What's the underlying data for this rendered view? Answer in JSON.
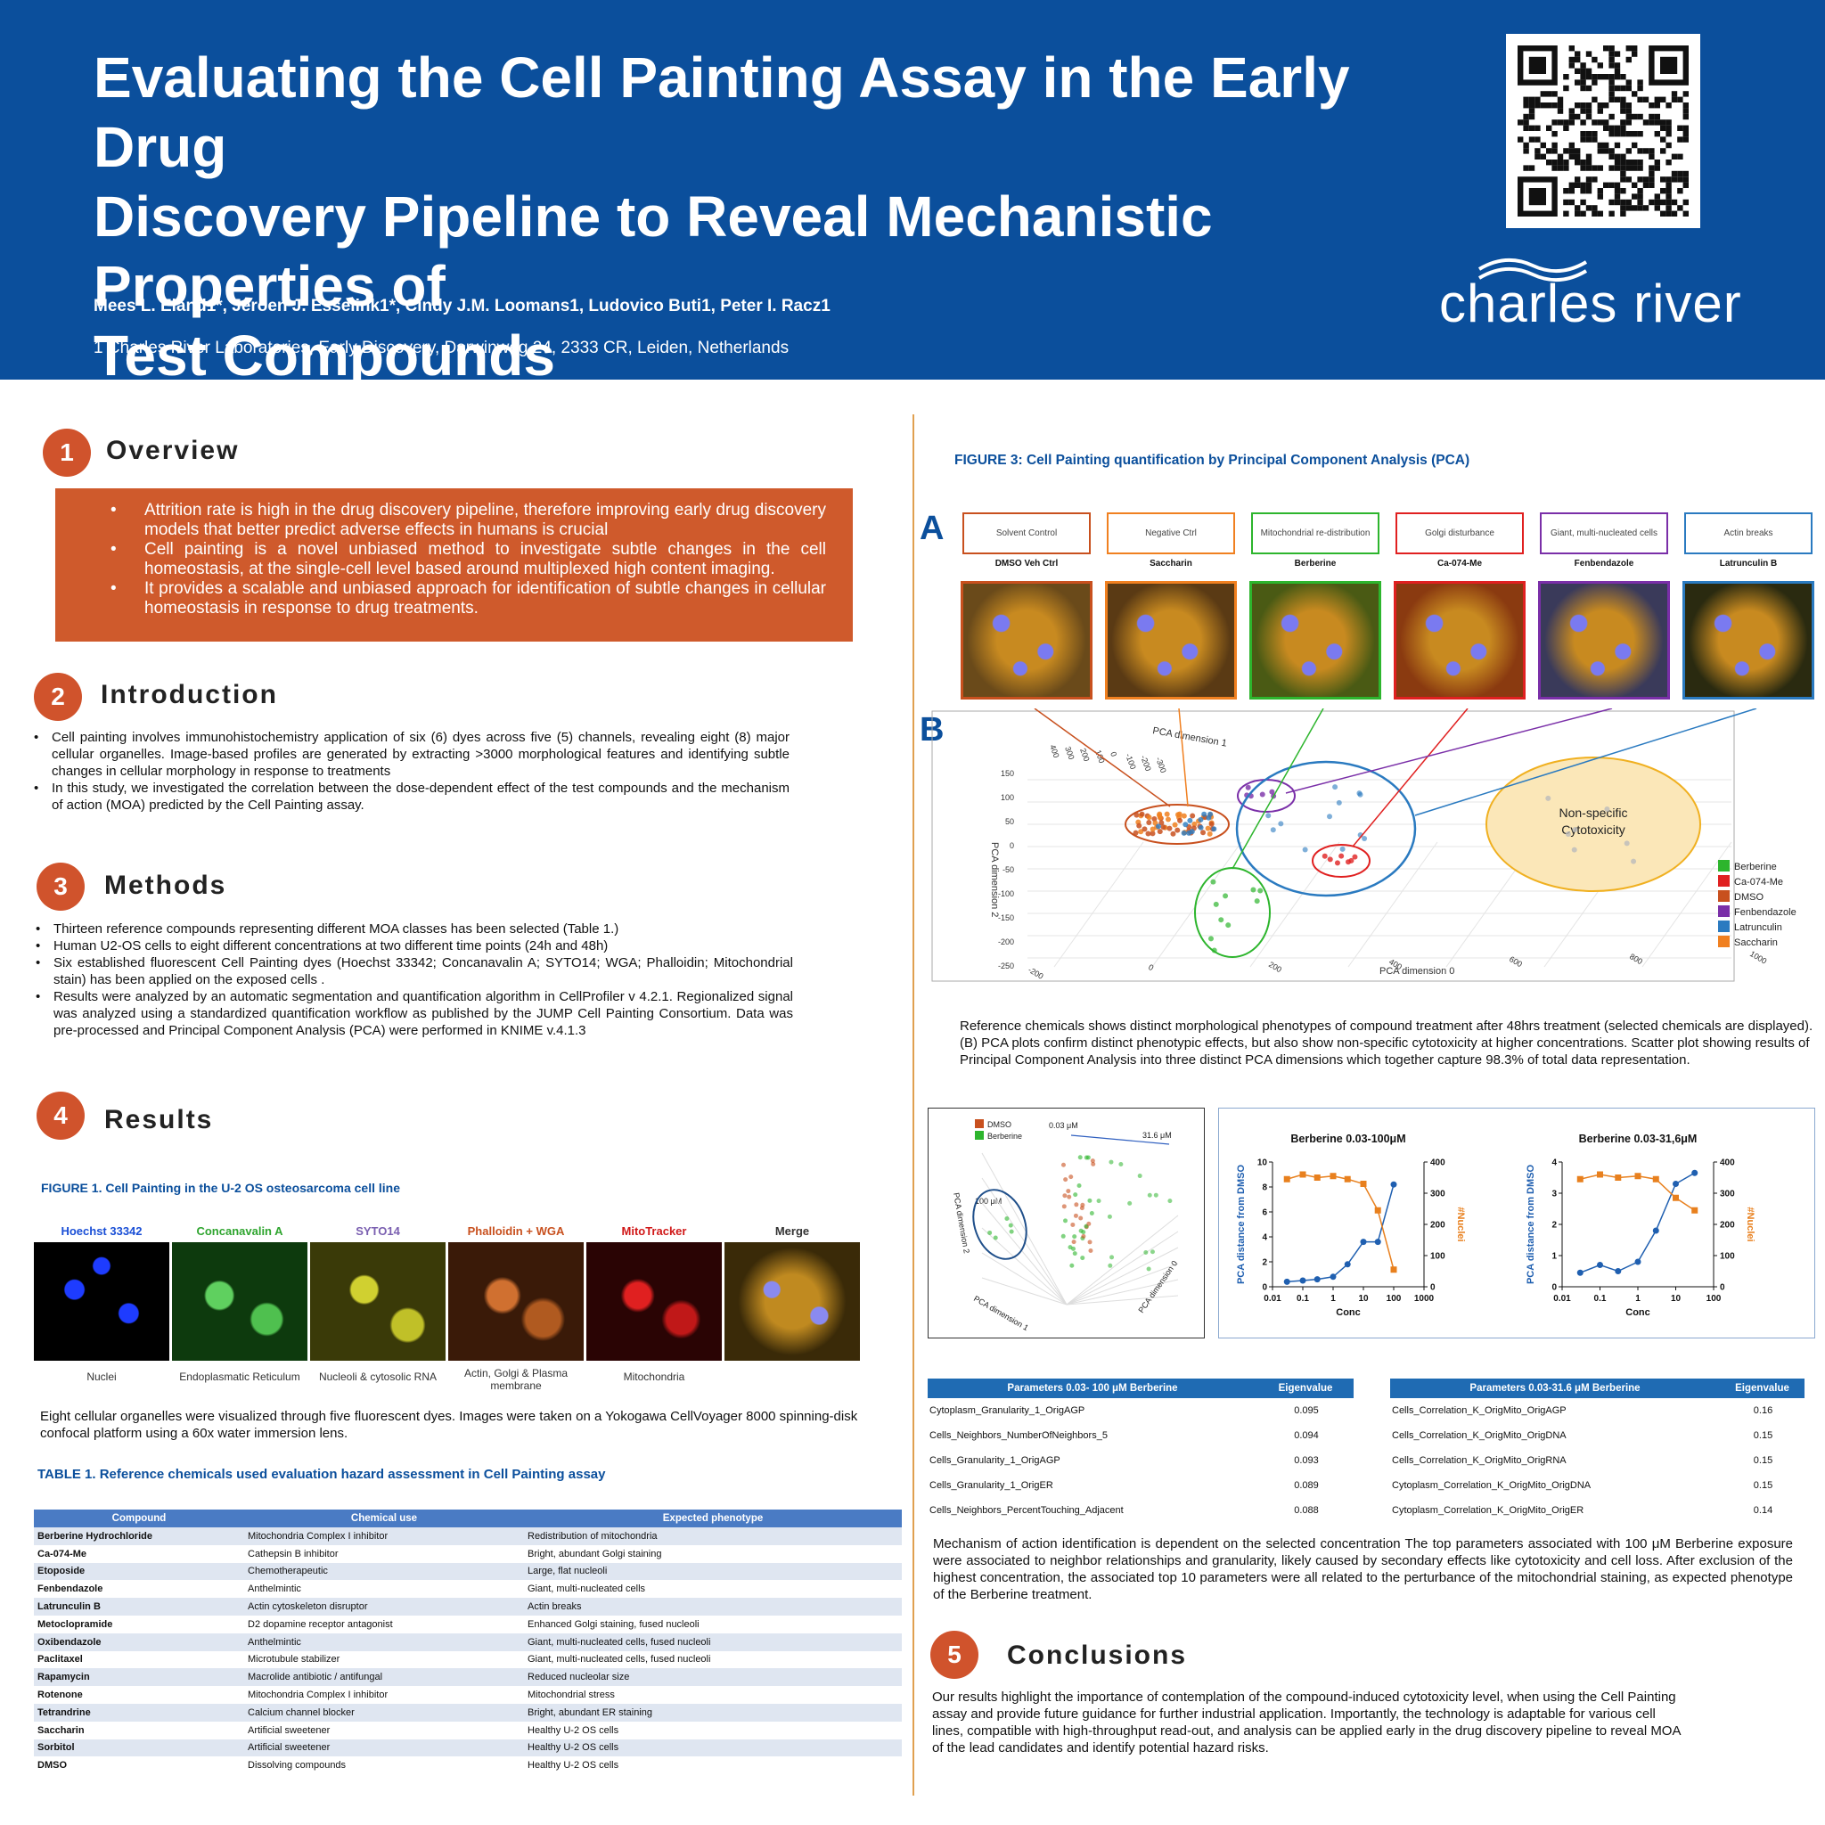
{
  "header": {
    "title_lines": [
      "Evaluating the Cell Painting Assay in the Early Drug",
      "Discovery Pipeline to Reveal Mechanistic Properties of",
      "Test Compounds"
    ],
    "authors": "Mees L. Eland1*, Jeroen J. Esselink1*, Cindy J.M. Loomans1, Ludovico Buti1, Peter I. Racz1",
    "affiliation": "1 Charles River Laboratories, Early Discovery, Darwinweg 24, 2333 CR, Leiden, Netherlands",
    "logo_text": "charles river",
    "brand_color": "#0b4f9c",
    "accent_color": "#d0532c"
  },
  "sections": {
    "overview": {
      "num": "1",
      "title": "Overview",
      "bullets": [
        "Attrition rate is high in the drug discovery pipeline, therefore improving early drug discovery models that better predict adverse effects in humans is crucial",
        "Cell painting is a novel unbiased method to investigate subtle changes in the cell homeostasis, at the single-cell level based around multiplexed high content imaging.",
        "It provides a scalable and unbiased approach for identification of subtle changes in cellular homeostasis in response to drug treatments."
      ]
    },
    "introduction": {
      "num": "2",
      "title": "Introduction",
      "bullets": [
        "Cell painting involves immunohistochemistry application of six (6) dyes across five (5) channels, revealing eight (8) major cellular organelles. Image-based profiles are generated by extracting >3000 morphological features and identifying subtle changes in cellular morphology in response to treatments",
        "In this study, we investigated the correlation between the dose-dependent effect of the test compounds and the mechanism of action (MOA) predicted by the Cell Painting assay."
      ]
    },
    "methods": {
      "num": "3",
      "title": "Methods",
      "bullets": [
        "Thirteen reference compounds representing different MOA classes has been selected (Table 1.)",
        "Human U2-OS cells to eight different concentrations at two different time points (24h and 48h)",
        "Six established fluorescent Cell Painting dyes (Hoechst 33342; Concanavalin A; SYTO14; WGA; Phalloidin; Mitochondrial stain) has been applied on the exposed cells .",
        "Results were analyzed by an automatic segmentation and quantification algorithm in CellProfiler v 4.2.1. Regionalized signal was analyzed using a standardized quantification workflow as published by the JUMP Cell Painting Consortium. Data was pre-processed and Principal Component Analysis (PCA) were performed in KNIME v.4.1.3"
      ]
    },
    "results": {
      "num": "4",
      "title": "Results"
    },
    "conclusions": {
      "num": "5",
      "title": "Conclusions",
      "text": "Our results highlight the importance of contemplation of the compound-induced cytotoxicity level, when using the Cell Painting assay and provide future guidance for further industrial application.  Importantly, the technology is adaptable for various cell lines, compatible with high-throughput read-out, and analysis can be applied early in the drug discovery pipeline to reveal MOA of the lead candidates and identify potential hazard risks."
    }
  },
  "figure1": {
    "title": "FIGURE 1. Cell Painting in the U-2 OS osteosarcoma cell line",
    "channels": [
      {
        "label": "Hoechst 33342",
        "caption": "Nuclei",
        "color": "#1a4fd6"
      },
      {
        "label": "Concanavalin A",
        "caption": "Endoplasmatic Reticulum",
        "color": "#2fa52f"
      },
      {
        "label": "SYTO14",
        "caption": "Nucleoli & cytosolic RNA",
        "color": "#7a5fb0"
      },
      {
        "label": "Phalloidin + WGA",
        "caption": "Actin, Golgi & Plasma membrane",
        "color": "#c8501e"
      },
      {
        "label": "MitoTracker",
        "caption": "Mitochondria",
        "color": "#d01818"
      },
      {
        "label": "Merge",
        "caption": "",
        "color": "#333333"
      }
    ],
    "text": "Eight cellular organelles were visualized through five fluorescent dyes. Images were taken on a Yokogawa CellVoyager 8000 spinning-disk confocal platform using a 60x water immersion lens."
  },
  "table1": {
    "title": "TABLE  1. Reference chemicals used evaluation hazard assessment in Cell Painting assay",
    "headers": [
      "Compound",
      "Chemical use",
      "Expected phenotype"
    ],
    "rows": [
      [
        "Berberine Hydrochloride",
        "Mitochondria Complex I inhibitor",
        "Redistribution of mitochondria"
      ],
      [
        "Ca-074-Me",
        "Cathepsin B inhibitor",
        "Bright, abundant Golgi staining"
      ],
      [
        "Etoposide",
        "Chemotherapeutic",
        "Large, flat nucleoli"
      ],
      [
        "Fenbendazole",
        "Anthelmintic",
        "Giant, multi-nucleated cells"
      ],
      [
        "Latrunculin B",
        "Actin cytoskeleton disruptor",
        "Actin breaks"
      ],
      [
        "Metoclopramide",
        "D2 dopamine receptor antagonist",
        "Enhanced Golgi staining, fused nucleoli"
      ],
      [
        "Oxibendazole",
        "Anthelmintic",
        "Giant, multi-nucleated cells, fused nucleoli"
      ],
      [
        "Paclitaxel",
        "Microtubule stabilizer",
        "Giant, multi-nucleated cells, fused nucleoli"
      ],
      [
        "Rapamycin",
        "Macrolide antibiotic / antifungal",
        "Reduced nucleolar size"
      ],
      [
        "Rotenone",
        "Mitochondria Complex I inhibitor",
        "Mitochondrial stress"
      ],
      [
        "Tetrandrine",
        "Calcium channel blocker",
        "Bright, abundant ER staining"
      ],
      [
        "Saccharin",
        "Artificial sweetener",
        "Healthy U-2 OS cells"
      ],
      [
        "Sorbitol",
        "Artificial sweetener",
        "Healthy U-2 OS cells"
      ],
      [
        "DMSO",
        "Dissolving compounds",
        "Healthy U-2 OS cells"
      ]
    ]
  },
  "figure3": {
    "title": "FIGURE 3: Cell Painting quantification by Principal Component Analysis (PCA)",
    "panel_a": "A",
    "panel_b": "B",
    "phenotypes": [
      {
        "label": "Solvent Control",
        "compound": "DMSO Veh Ctrl",
        "color": "#c8501e"
      },
      {
        "label": "Negative Ctrl",
        "compound": "Saccharin",
        "color": "#f08020"
      },
      {
        "label": "Mitochondrial re-distribution",
        "compound": "Berberine",
        "color": "#2db52d"
      },
      {
        "label": "Golgi  disturbance",
        "compound": "Ca-074-Me",
        "color": "#e02020"
      },
      {
        "label": "Giant, multi-nucleated cells",
        "compound": "Fenbendazole",
        "color": "#7a2fa8"
      },
      {
        "label": "Actin breaks",
        "compound": "Latrunculin B",
        "color": "#2a7ac0"
      }
    ],
    "pca_axes": {
      "dim1": "PCA dimension 1",
      "dim2": "PCA dimension 2",
      "dim0": "PCA dimension 0"
    },
    "pca_dim1_ticks": [
      "400",
      "300",
      "200",
      "100",
      "0",
      "-100",
      "-200",
      "-300"
    ],
    "pca_dim2_ticks": [
      "150",
      "100",
      "50",
      "0",
      "-50",
      "-100",
      "-150",
      "-200",
      "-250"
    ],
    "pca_dim0_ticks": [
      "-200",
      "0",
      "200",
      "400",
      "600",
      "800",
      "1000"
    ],
    "cytotox_label": "Non-specific Cytotoxicity",
    "legend": [
      {
        "name": "Berberine",
        "color": "#2db52d"
      },
      {
        "name": "Ca-074-Me",
        "color": "#e02020"
      },
      {
        "name": "DMSO",
        "color": "#c8501e"
      },
      {
        "name": "Fenbendazole",
        "color": "#7a2fa8"
      },
      {
        "name": "Latrunculin",
        "color": "#2a7ac0"
      },
      {
        "name": "Saccharin",
        "color": "#f08020"
      }
    ],
    "caption": "Reference chemicals shows distinct morphological phenotypes of compound treatment after 48hrs treatment (selected chemicals are displayed). (B) PCA plots confirm distinct phenotypic effects, but also show non-specific cytotoxicity at higher concentrations. Scatter plot showing results of Principal Component Analysis into three distinct PCA dimensions which together capture 98.3% of total data representation."
  },
  "small_pca": {
    "legend": [
      {
        "name": "DMSO",
        "color": "#c8501e"
      },
      {
        "name": "Berberine",
        "color": "#2db52d"
      }
    ],
    "labels": {
      "low": "0.03 μM",
      "high_right": "31.6 μM",
      "high_left": "100 μM"
    },
    "axes": {
      "dim2": "PCA dimension 2",
      "dim1": "PCA dimension 1",
      "dim0": "PCA dimension 0"
    }
  },
  "chart_data": [
    {
      "type": "line",
      "title": "Berberine 0.03-100μM",
      "xlabel": "Conc",
      "ylabel": "PCA distance from DMSO",
      "y2label": "#Nuclei",
      "xscale": "log",
      "xlim": [
        0.01,
        1000
      ],
      "ylim": [
        0,
        10
      ],
      "y2lim": [
        0,
        400
      ],
      "xticks": [
        "0.01",
        "0.1",
        "1",
        "10",
        "100",
        "1000"
      ],
      "yticks": [
        "0",
        "2",
        "4",
        "6",
        "8",
        "10"
      ],
      "y2ticks": [
        "0",
        "100",
        "200",
        "300",
        "400"
      ],
      "series": [
        {
          "name": "PCA distance from DMSO",
          "axis": "left",
          "color": "#1f5fb0",
          "x": [
            0.03,
            0.1,
            0.3,
            1,
            3,
            10,
            30,
            100
          ],
          "y": [
            0.4,
            0.5,
            0.6,
            0.8,
            1.8,
            3.6,
            3.6,
            8.2
          ]
        },
        {
          "name": "#Nuclei",
          "axis": "right",
          "color": "#e8801e",
          "x": [
            0.03,
            0.1,
            0.3,
            1,
            3,
            10,
            30,
            100
          ],
          "y": [
            345,
            360,
            350,
            355,
            345,
            330,
            245,
            55
          ]
        }
      ]
    },
    {
      "type": "line",
      "title": "Berberine 0.03-31,6μM",
      "xlabel": "Conc",
      "ylabel": "PCA distance from DMSO",
      "y2label": "#Nuclei",
      "xscale": "log",
      "xlim": [
        0.01,
        100
      ],
      "ylim": [
        0,
        4
      ],
      "y2lim": [
        0,
        400
      ],
      "xticks": [
        "0.01",
        "0.1",
        "1",
        "10",
        "100"
      ],
      "yticks": [
        "0",
        "1",
        "2",
        "3",
        "4"
      ],
      "y2ticks": [
        "0",
        "100",
        "200",
        "300",
        "400"
      ],
      "series": [
        {
          "name": "PCA distance from DMSO",
          "axis": "left",
          "color": "#1f5fb0",
          "x": [
            0.03,
            0.1,
            0.3,
            1,
            3,
            10,
            31.6
          ],
          "y": [
            0.45,
            0.7,
            0.5,
            0.8,
            1.8,
            3.3,
            3.65
          ]
        },
        {
          "name": "#Nuclei",
          "axis": "right",
          "color": "#e8801e",
          "x": [
            0.03,
            0.1,
            0.3,
            1,
            3,
            10,
            31.6
          ],
          "y": [
            345,
            360,
            350,
            355,
            345,
            285,
            245
          ]
        }
      ]
    }
  ],
  "param_table_1": {
    "headers": [
      "Parameters 0.03- 100 μM Berberine",
      "Eigenvalue"
    ],
    "rows": [
      [
        "Cytoplasm_Granularity_1_OrigAGP",
        "0.095"
      ],
      [
        "Cells_Neighbors_NumberOfNeighbors_5",
        "0.094"
      ],
      [
        "Cells_Granularity_1_OrigAGP",
        "0.093"
      ],
      [
        "Cells_Granularity_1_OrigER",
        "0.089"
      ],
      [
        "Cells_Neighbors_PercentTouching_Adjacent",
        "0.088"
      ]
    ]
  },
  "param_table_2": {
    "headers": [
      "Parameters 0.03-31.6 μM  Berberine",
      "Eigenvalue"
    ],
    "rows": [
      [
        "Cells_Correlation_K_OrigMito_OrigAGP",
        "0.16"
      ],
      [
        "Cells_Correlation_K_OrigMito_OrigDNA",
        "0.15"
      ],
      [
        "Cells_Correlation_K_OrigMito_OrigRNA",
        "0.15"
      ],
      [
        "Cytoplasm_Correlation_K_OrigMito_OrigDNA",
        "0.15"
      ],
      [
        "Cytoplasm_Correlation_K_OrigMito_OrigER",
        "0.14"
      ]
    ]
  },
  "moa_text": "Mechanism of action identification is dependent on the selected concentration  The top parameters associated with 100 μM Berberine exposure were associated to neighbor relationships and granularity, likely caused by secondary effects like cytotoxicity and cell loss. After exclusion of the highest concentration, the associated top 10 parameters were all related to the perturbance of the mitochondrial staining, as expected phenotype of the Berberine treatment."
}
